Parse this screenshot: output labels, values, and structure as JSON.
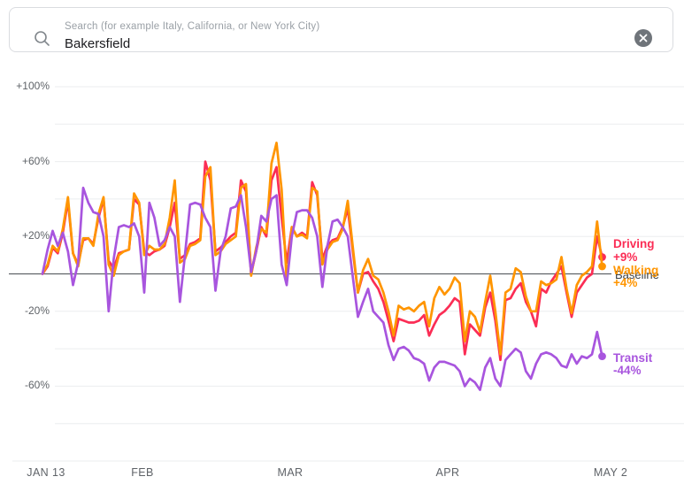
{
  "search": {
    "placeholder": "Search (for example Italy, California, or New York City)",
    "value": "Bakersfield",
    "search_icon": "magnifier",
    "clear_icon": "circle-x"
  },
  "chart_data": {
    "type": "line",
    "title": "",
    "x_ticks": [
      {
        "label": "JAN 13",
        "day": 0
      },
      {
        "label": "FEB",
        "day": 19
      },
      {
        "label": "MAR",
        "day": 48
      },
      {
        "label": "APR",
        "day": 79
      },
      {
        "label": "MAY 2",
        "day": 110
      }
    ],
    "y_ticks": [
      {
        "label": "+100%",
        "value": 100
      },
      {
        "label": "+60%",
        "value": 60
      },
      {
        "label": "+20%",
        "value": 20
      },
      {
        "label": "-20%",
        "value": -20
      },
      {
        "label": "-60%",
        "value": -60
      }
    ],
    "y_gridlines": [
      100,
      80,
      60,
      40,
      20,
      -20,
      -40,
      -60,
      -80,
      -100
    ],
    "ylim": [
      -100,
      110
    ],
    "grid": true,
    "legend_position": "right-of-line-ends",
    "baseline_value": 0,
    "baseline_label": "Baseline",
    "x_range_days": 110,
    "series": [
      {
        "name": "Driving",
        "color": "#FB2D55",
        "end_label": "+9%",
        "end_value": 9,
        "values": [
          0,
          4,
          14,
          11,
          22,
          39,
          11,
          5,
          18,
          19,
          16,
          30,
          40,
          7,
          3,
          11,
          12,
          13,
          40,
          37,
          12,
          10,
          12,
          13,
          15,
          25,
          38,
          8,
          10,
          16,
          17,
          19,
          60,
          50,
          12,
          14,
          17,
          20,
          22,
          50,
          44,
          0,
          12,
          25,
          20,
          50,
          57,
          30,
          6,
          25,
          20,
          22,
          20,
          49,
          42,
          8,
          15,
          18,
          19,
          25,
          35,
          12,
          -10,
          0,
          1,
          -4,
          -8,
          -15,
          -25,
          -36,
          -24,
          -25,
          -26,
          -26,
          -25,
          -22,
          -33,
          -27,
          -22,
          -20,
          -17,
          -13,
          -15,
          -43,
          -27,
          -30,
          -33,
          -18,
          -10,
          -25,
          -46,
          -14,
          -13,
          -8,
          -5,
          -15,
          -20,
          -28,
          -8,
          -10,
          -4,
          0,
          4,
          -10,
          -23,
          -10,
          -6,
          -2,
          0,
          20,
          9
        ]
      },
      {
        "name": "Walking",
        "color": "#FF9500",
        "end_label": "+4%",
        "end_value": 4,
        "values": [
          0,
          5,
          15,
          12,
          24,
          41,
          11,
          4,
          19,
          19,
          15,
          32,
          41,
          5,
          -1,
          10,
          12,
          13,
          43,
          38,
          10,
          15,
          13,
          13,
          16,
          30,
          50,
          6,
          8,
          15,
          16,
          18,
          52,
          57,
          10,
          12,
          16,
          18,
          20,
          46,
          48,
          -1,
          14,
          24,
          22,
          59,
          70,
          45,
          -4,
          25,
          20,
          21,
          19,
          46,
          44,
          5,
          13,
          17,
          18,
          24,
          39,
          14,
          -10,
          2,
          8,
          -1,
          -3,
          -10,
          -20,
          -33,
          -17,
          -19,
          -18,
          -20,
          -17,
          -15,
          -28,
          -13,
          -7,
          -11,
          -8,
          -2,
          -5,
          -36,
          -20,
          -23,
          -31,
          -15,
          -1,
          -20,
          -43,
          -10,
          -8,
          3,
          1,
          -12,
          -20,
          -20,
          -4,
          -6,
          -5,
          -3,
          9,
          -8,
          -21,
          -6,
          -1,
          1,
          4,
          28,
          4
        ]
      },
      {
        "name": "Transit",
        "color": "#A855DE",
        "end_label": "-44%",
        "end_value": -44,
        "values": [
          0,
          13,
          23,
          15,
          22,
          12,
          -6,
          6,
          46,
          38,
          33,
          32,
          20,
          -20,
          8,
          25,
          26,
          25,
          27,
          20,
          -10,
          38,
          30,
          15,
          18,
          25,
          20,
          -15,
          10,
          37,
          38,
          37,
          30,
          25,
          -9,
          12,
          20,
          35,
          36,
          42,
          25,
          1,
          12,
          31,
          28,
          40,
          42,
          5,
          -6,
          20,
          33,
          34,
          34,
          30,
          20,
          -7,
          15,
          28,
          29,
          25,
          20,
          -2,
          -23,
          -15,
          -8,
          -20,
          -23,
          -26,
          -38,
          -46,
          -40,
          -39,
          -41,
          -45,
          -46,
          -48,
          -57,
          -50,
          -47,
          -47,
          -48,
          -49,
          -52,
          -60,
          -56,
          -58,
          -62,
          -50,
          -45,
          -56,
          -60,
          -46,
          -43,
          -40,
          -42,
          -52,
          -56,
          -48,
          -43,
          -42,
          -43,
          -45,
          -49,
          -50,
          -43,
          -48,
          -44,
          -45,
          -43,
          -31,
          -44
        ]
      }
    ]
  }
}
